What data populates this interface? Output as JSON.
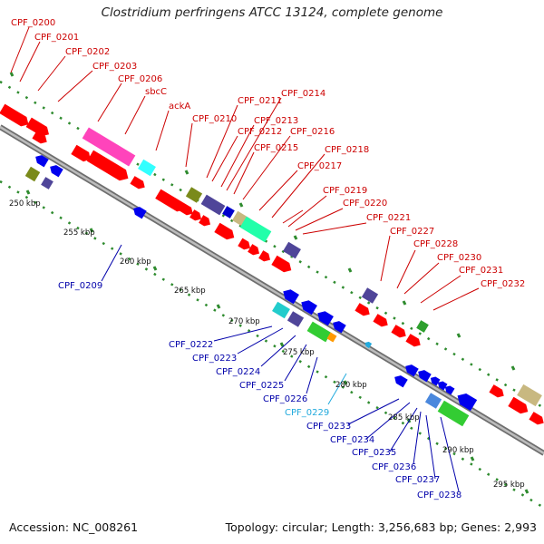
{
  "title": "Clostridium perfringens ATCC 13124, complete genome",
  "footer": {
    "accession": "Accession: NC_008261",
    "summary": "Topology: circular; Length: 3,256,683 bp; Genes: 2,993"
  },
  "colors": {
    "backbone": "#8f8f8f",
    "tick": "#2e8b2e",
    "label_upper": "#cc0000",
    "label_lower": "#0000aa",
    "label_cyan": "#22aadd"
  },
  "kbp_labels": [
    "250 kbp",
    "255 kbp",
    "260 kbp",
    "265 kbp",
    "270 kbp",
    "275 kbp",
    "280 kbp",
    "285 kbp",
    "290 kbp",
    "295 kbp"
  ],
  "upper_labels": [
    "CPF_0200",
    "CPF_0201",
    "CPF_0202",
    "CPF_0203",
    "CPF_0206",
    "sbcC",
    "ackA",
    "CPF_0210",
    "CPF_0211",
    "CPF_0212",
    "CPF_0213",
    "CPF_0214",
    "CPF_0215",
    "CPF_0216",
    "CPF_0217",
    "CPF_0218",
    "CPF_0219",
    "CPF_0220",
    "CPF_0221",
    "CPF_0227",
    "CPF_0228",
    "CPF_0230",
    "CPF_0231",
    "CPF_0232"
  ],
  "lower_labels": [
    "CPF_0209",
    "CPF_0222",
    "CPF_0223",
    "CPF_0224",
    "CPF_0225",
    "CPF_0226",
    "CPF_0229",
    "CPF_0233",
    "CPF_0234",
    "CPF_0235",
    "CPF_0236",
    "CPF_0237",
    "CPF_0238"
  ]
}
